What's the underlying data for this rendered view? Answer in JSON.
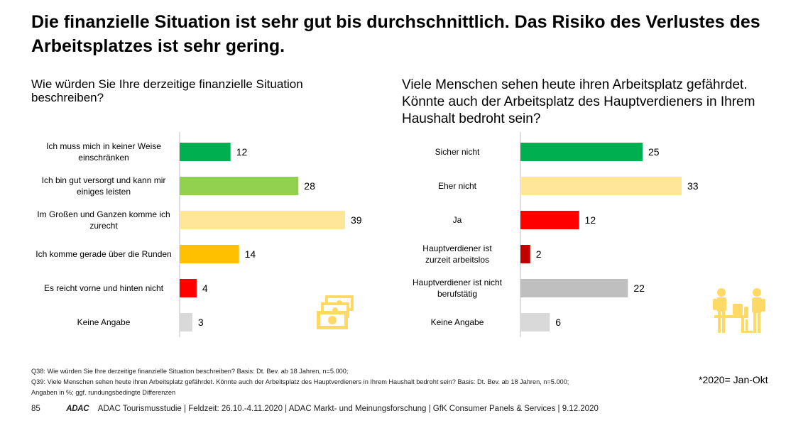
{
  "title": "Die finanzielle Situation ist sehr gut bis durchschnittlich. Das Risiko des Verlustes des Arbeitsplatzes ist sehr gering.",
  "questions": {
    "left": "Wie würden Sie Ihre derzeitige finanzielle Situation beschreiben?",
    "right": "Viele Menschen sehen heute ihren Arbeitsplatz gefährdet. Könnte auch der Arbeitsplatz des Hauptverdieners in Ihrem Haushalt bedroht sein?"
  },
  "chart_data": [
    {
      "type": "bar",
      "orientation": "horizontal",
      "categories": [
        "Ich muss mich in keiner Weise einschränken",
        "Ich bin gut versorgt und kann mir einiges leisten",
        "Im Großen und Ganzen komme ich zurecht",
        "Ich komme gerade über die Runden",
        "Es reicht vorne und hinten nicht",
        "Keine Angabe"
      ],
      "values": [
        12,
        28,
        39,
        14,
        4,
        3
      ],
      "colors": [
        "#00b050",
        "#92d050",
        "#ffe699",
        "#ffc000",
        "#ff0000",
        "#d9d9d9"
      ],
      "xlim": [
        0,
        39
      ]
    },
    {
      "type": "bar",
      "orientation": "horizontal",
      "categories": [
        "Sicher nicht",
        "Eher nicht",
        "Ja",
        "Hauptverdiener ist zurzeit arbeitslos",
        "Hauptverdiener ist nicht berufstätig",
        "Keine Angabe"
      ],
      "values": [
        25,
        33,
        12,
        2,
        22,
        6
      ],
      "colors": [
        "#00b050",
        "#ffe699",
        "#ff0000",
        "#c00000",
        "#bfbfbf",
        "#d9d9d9"
      ],
      "xlim": [
        0,
        33
      ]
    }
  ],
  "footnotes": [
    "Q38: Wie würden Sie Ihre derzeitige finanzielle Situation beschreiben? Basis: Dt. Bev. ab 18 Jahren, n=5.000;",
    "Q39: Viele Menschen sehen heute ihren Arbeitsplatz gefährdet. Könnte auch der Arbeitsplatz des Hauptverdieners in Ihrem Haushalt bedroht sein? Basis: Dt. Bev. ab 18 Jahren, n=5.000;",
    "Angaben in %; ggf. rundungsbedingte Differenzen"
  ],
  "note": "*2020= Jan-Okt",
  "footer": {
    "page": "85",
    "logo": "ADAC",
    "text": "ADAC Tourismusstudie | Feldzeit: 26.10.-4.11.2020 | ADAC Markt- und Meinungsforschung | GfK Consumer Panels & Services | 9.12.2020"
  },
  "icons": {
    "left": "money-bills-icon",
    "right": "office-workers-icon",
    "accent": "#ffd966"
  }
}
